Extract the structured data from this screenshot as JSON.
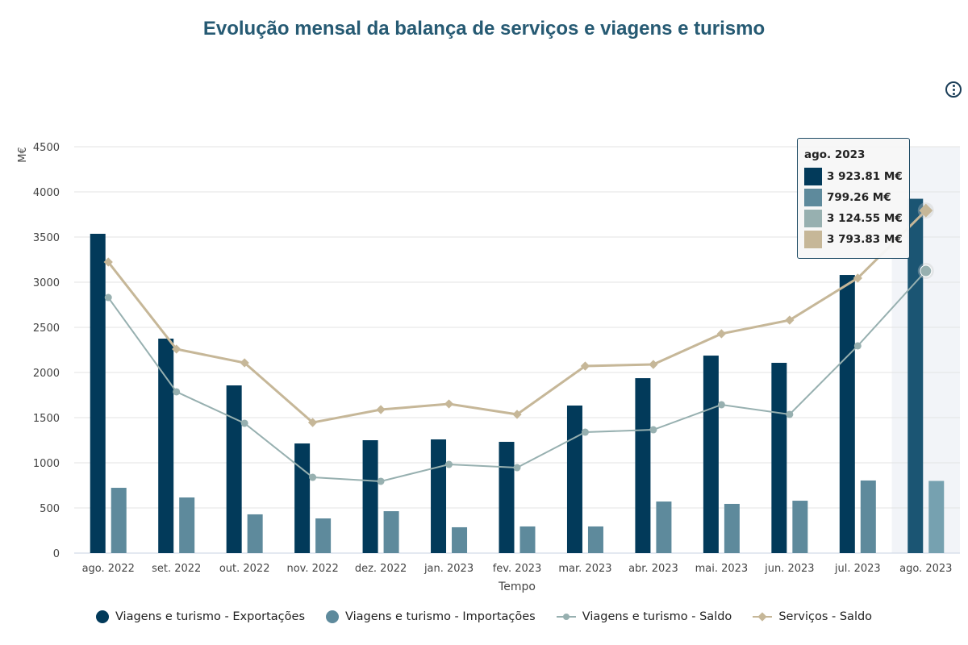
{
  "chart_data": {
    "type": "bar",
    "title": "Evolução mensal da balança de serviços e viagens e turismo",
    "xlabel": "Tempo",
    "ylabel": "M€",
    "ylim": [
      0,
      4500
    ],
    "yticks": [
      0,
      500,
      1000,
      1500,
      2000,
      2500,
      3000,
      3500,
      4000,
      4500
    ],
    "grid": true,
    "legend_placement": "bottom",
    "categories": [
      "ago. 2022",
      "set. 2022",
      "out. 2022",
      "nov. 2022",
      "dez. 2022",
      "jan. 2023",
      "fev. 2023",
      "mar. 2023",
      "abr. 2023",
      "mai. 2023",
      "jun. 2023",
      "jul. 2023",
      "ago. 2023"
    ],
    "series": [
      {
        "name": "Viagens e turismo - Exportações",
        "kind": "bar",
        "color": "#023a5a",
        "values": [
          3536,
          2375,
          1857,
          1214,
          1250,
          1259,
          1232,
          1634,
          1937,
          2187,
          2107,
          3080,
          3923.81
        ]
      },
      {
        "name": "Viagens e turismo - Importações",
        "kind": "bar",
        "color": "#5e8a9c",
        "values": [
          723,
          616,
          429,
          384,
          464,
          286,
          295,
          295,
          571,
          545,
          580,
          804,
          799.26
        ]
      },
      {
        "name": "Viagens e turismo - Saldo",
        "kind": "line",
        "marker": "circle",
        "color": "#97b0b0",
        "values": [
          2830,
          1786,
          1438,
          839,
          795,
          982,
          946,
          1339,
          1366,
          1643,
          1536,
          2295,
          3124.55
        ]
      },
      {
        "name": "Serviços - Saldo",
        "kind": "line",
        "marker": "diamond",
        "color": "#c6b798",
        "values": [
          3223,
          2259,
          2107,
          1446,
          1589,
          1652,
          1536,
          2071,
          2089,
          2429,
          2580,
          3045,
          3793.83
        ]
      }
    ],
    "tooltip": {
      "title": "ago. 2023",
      "values": [
        "3 923.81 M€",
        "799.26 M€",
        "3 124.55 M€",
        "3 793.83 M€"
      ]
    },
    "highlighted_category": "ago. 2023"
  }
}
